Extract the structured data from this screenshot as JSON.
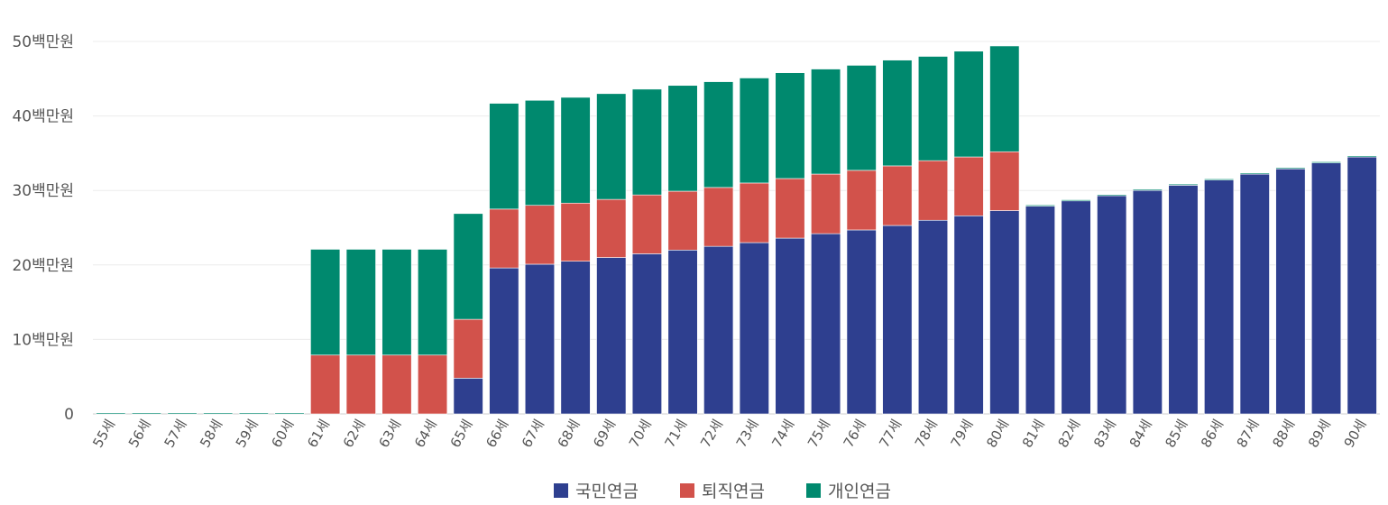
{
  "chart_data": {
    "type": "bar",
    "stacked": true,
    "categories": [
      "55세",
      "56세",
      "57세",
      "58세",
      "59세",
      "60세",
      "61세",
      "62세",
      "63세",
      "64세",
      "65세",
      "66세",
      "67세",
      "68세",
      "69세",
      "70세",
      "71세",
      "72세",
      "73세",
      "74세",
      "75세",
      "76세",
      "77세",
      "78세",
      "79세",
      "80세",
      "81세",
      "82세",
      "83세",
      "84세",
      "85세",
      "86세",
      "87세",
      "88세",
      "89세",
      "90세"
    ],
    "series": [
      {
        "name": "국민연금",
        "color": "#2e3f8f",
        "values": [
          0,
          0,
          0,
          0,
          0,
          0,
          0,
          0,
          0,
          0,
          4.8,
          19.6,
          20.1,
          20.5,
          21.0,
          21.5,
          22.0,
          22.5,
          23.0,
          23.6,
          24.2,
          24.7,
          25.3,
          26.0,
          26.6,
          27.3,
          27.9,
          28.6,
          29.3,
          30.0,
          30.7,
          31.4,
          32.2,
          32.9,
          33.7,
          34.5
        ]
      },
      {
        "name": "퇴직연금",
        "color": "#d2524b",
        "values": [
          0,
          0,
          0,
          0,
          0,
          0,
          7.9,
          7.9,
          7.9,
          7.9,
          7.9,
          7.9,
          7.9,
          7.8,
          7.8,
          7.9,
          7.9,
          7.9,
          8.0,
          8.0,
          8.0,
          8.0,
          8.0,
          8.0,
          7.9,
          7.9,
          0,
          0,
          0,
          0,
          0,
          0,
          0,
          0,
          0,
          0
        ]
      },
      {
        "name": "개인연금",
        "color": "#00896e",
        "values": [
          0.15,
          0.15,
          0.15,
          0.15,
          0.15,
          0.15,
          14.2,
          14.2,
          14.2,
          14.2,
          14.2,
          14.2,
          14.1,
          14.2,
          14.2,
          14.2,
          14.2,
          14.2,
          14.1,
          14.2,
          14.1,
          14.1,
          14.2,
          14.0,
          14.2,
          14.2,
          0.15,
          0.15,
          0.15,
          0.15,
          0.15,
          0.15,
          0.15,
          0.15,
          0.15,
          0.15
        ]
      }
    ],
    "ylim": [
      0,
      50
    ],
    "yticks": [
      {
        "value": 0,
        "label": "0"
      },
      {
        "value": 10,
        "label": "10백만원"
      },
      {
        "value": 20,
        "label": "20백만원"
      },
      {
        "value": 30,
        "label": "30백만원"
      },
      {
        "value": 40,
        "label": "40백만원"
      },
      {
        "value": 50,
        "label": "50백만원"
      }
    ],
    "title": "",
    "xlabel": "",
    "ylabel": "",
    "grid": true,
    "legend_position": "bottom-center"
  }
}
